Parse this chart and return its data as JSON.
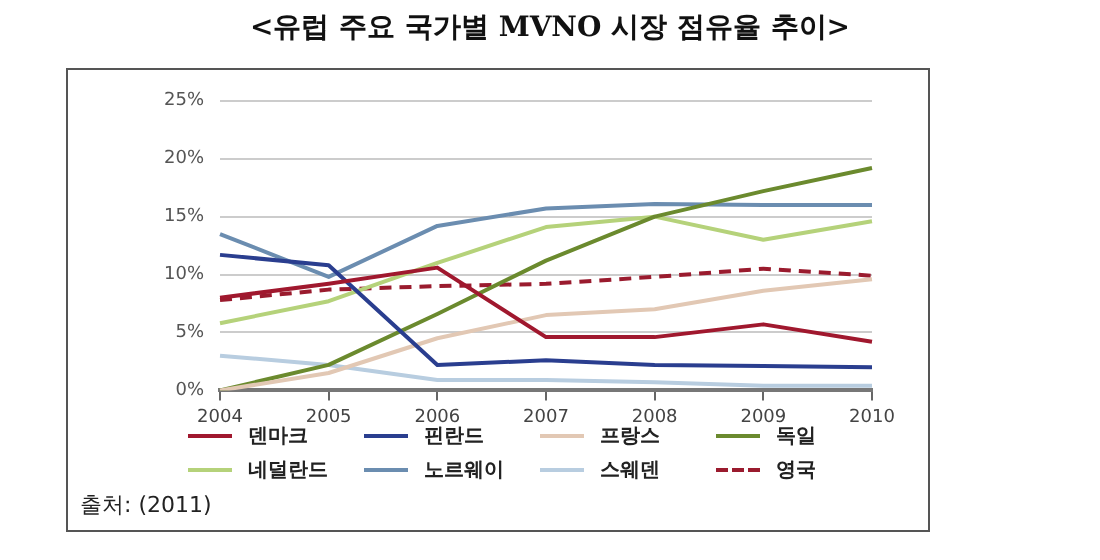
{
  "chart_data": {
    "type": "line",
    "title": "<유럽 주요 국가별 MVNO 시장 점유율 추이>",
    "categories": [
      "2004",
      "2005",
      "2006",
      "2007",
      "2008",
      "2009",
      "2010"
    ],
    "series": [
      {
        "name": "덴마크",
        "color": "#a0182e",
        "values": [
          8.0,
          9.2,
          10.6,
          4.6,
          4.6,
          5.7,
          4.2
        ]
      },
      {
        "name": "핀란드",
        "color": "#2a3e8f",
        "values": [
          11.7,
          10.8,
          2.2,
          2.6,
          2.2,
          2.1,
          2.0
        ]
      },
      {
        "name": "프랑스",
        "color": "#e2c8b4",
        "values": [
          0,
          1.5,
          4.5,
          6.5,
          7.0,
          8.6,
          9.6
        ]
      },
      {
        "name": "독일",
        "color": "#6b8a2e",
        "values": [
          0,
          2.2,
          6.6,
          11.2,
          15.0,
          17.2,
          19.2
        ]
      },
      {
        "name": "네덜란드",
        "color": "#b5d27a",
        "values": [
          5.8,
          7.7,
          11.0,
          14.1,
          15.0,
          13.0,
          14.6
        ]
      },
      {
        "name": "노르웨이",
        "color": "#6b8db0",
        "values": [
          13.5,
          9.8,
          14.2,
          15.7,
          16.1,
          16.0,
          16.0
        ]
      },
      {
        "name": "스웨덴",
        "color": "#b8cde0",
        "values": [
          3.0,
          2.2,
          0.9,
          0.9,
          0.7,
          0.4,
          0.4
        ]
      },
      {
        "name": "영국",
        "color": "#9a1b2e",
        "line_style": "dashed",
        "values": [
          7.8,
          8.7,
          9.0,
          9.2,
          9.8,
          10.5,
          9.9
        ]
      }
    ],
    "ylim": [
      0,
      25
    ],
    "yticks": [
      {
        "value": 0,
        "label": "0%"
      },
      {
        "value": 5,
        "label": "5%"
      },
      {
        "value": 10,
        "label": "10%"
      },
      {
        "value": 15,
        "label": "15%"
      },
      {
        "value": 20,
        "label": "20%"
      },
      {
        "value": 25,
        "label": "25%"
      }
    ],
    "grid": "y",
    "legend": "bottom",
    "marker": "none",
    "annotations": [
      "출처: (2011)"
    ]
  }
}
